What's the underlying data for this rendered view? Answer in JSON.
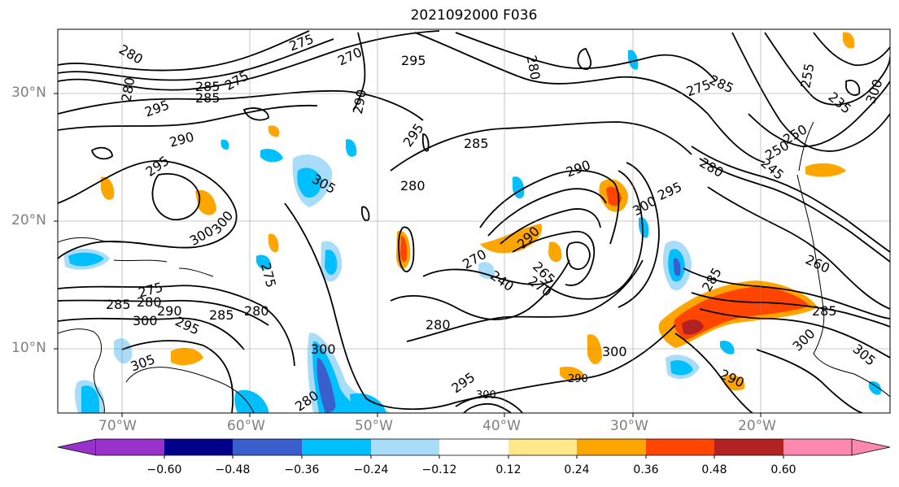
{
  "title": "2021092000 F036",
  "lat_labels": [
    "30°N",
    "20°N",
    "10°N"
  ],
  "lon_labels": [
    "70°W",
    "60°W",
    "50°W",
    "40°W",
    "30°W",
    "20°W"
  ],
  "colorbar": {
    "colors": [
      "#9932cc",
      "#00008b",
      "#3a5fcd",
      "#00bfff",
      "#a8dcf8",
      "#ffffff",
      "#ffe88a",
      "#ffa500",
      "#ff4500",
      "#b22222",
      "#ff88b0"
    ],
    "tick_labels": [
      "−0.60",
      "−0.48",
      "−0.36",
      "−0.24",
      "−0.12",
      "0.12",
      "0.24",
      "0.36",
      "0.48",
      "0.60"
    ]
  },
  "contour_labels": [
    "280",
    "275",
    "270",
    "295",
    "280",
    "285",
    "290",
    "275",
    "285",
    "295",
    "290",
    "295",
    "280",
    "295",
    "285",
    "280",
    "290",
    "300",
    "305",
    "300",
    "275",
    "280",
    "285",
    "290",
    "285",
    "295",
    "300",
    "305",
    "280",
    "300",
    "275",
    "280",
    "265",
    "270",
    "290",
    "300",
    "295",
    "300",
    "270",
    "240",
    "275",
    "285",
    "260",
    "285",
    "300",
    "305",
    "290",
    "300",
    "295",
    "285",
    "280",
    "255",
    "250",
    "245",
    "235",
    "250",
    "300",
    "290",
    "280"
  ]
}
